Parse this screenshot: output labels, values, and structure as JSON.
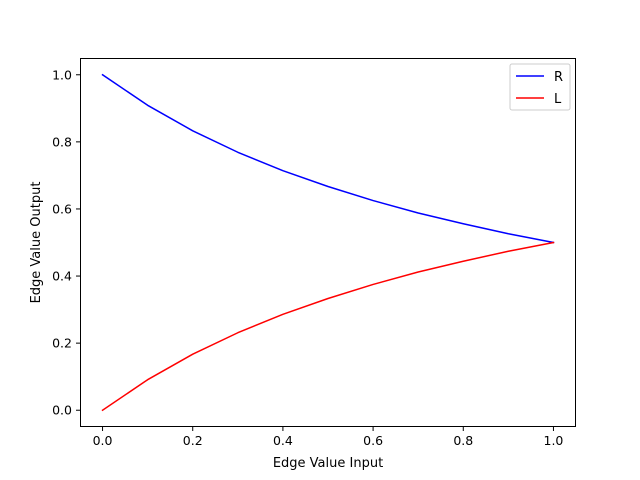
{
  "chart_data": {
    "type": "line",
    "title": "",
    "xlabel": "Edge Value Input",
    "ylabel": "Edge Value Output",
    "xlim": [
      -0.05,
      1.05
    ],
    "ylim": [
      -0.05,
      1.05
    ],
    "xticks": [
      0.0,
      0.2,
      0.4,
      0.6,
      0.8,
      1.0
    ],
    "xtick_labels": [
      "0.0",
      "0.2",
      "0.4",
      "0.6",
      "0.8",
      "1.0"
    ],
    "yticks": [
      0.0,
      0.2,
      0.4,
      0.6,
      0.8,
      1.0
    ],
    "ytick_labels": [
      "0.0",
      "0.2",
      "0.4",
      "0.6",
      "0.8",
      "1.0"
    ],
    "grid": false,
    "legend_position": "top-right",
    "x": [
      0.0,
      0.1,
      0.2,
      0.3,
      0.4,
      0.5,
      0.6,
      0.7,
      0.8,
      0.9,
      1.0
    ],
    "series": [
      {
        "name": "R",
        "color": "#0000ff",
        "values": [
          1.0,
          0.909,
          0.833,
          0.769,
          0.714,
          0.667,
          0.625,
          0.588,
          0.556,
          0.526,
          0.5
        ]
      },
      {
        "name": "L",
        "color": "#ff0000",
        "values": [
          0.0,
          0.091,
          0.167,
          0.231,
          0.286,
          0.333,
          0.375,
          0.412,
          0.444,
          0.474,
          0.5
        ]
      }
    ]
  }
}
